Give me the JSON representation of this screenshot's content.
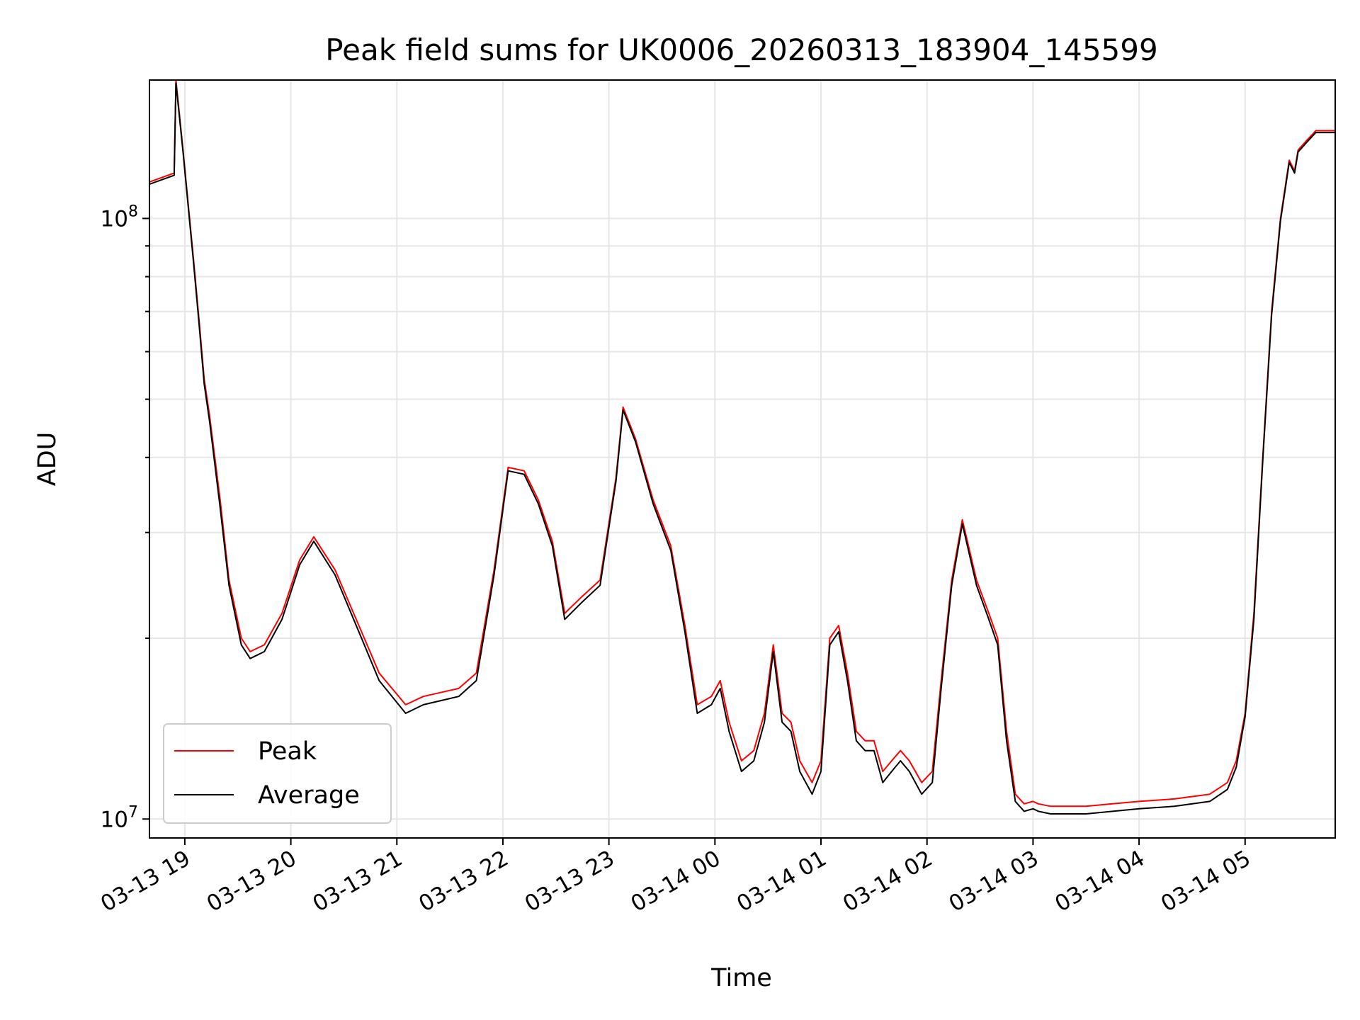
{
  "chart_data": {
    "type": "line",
    "title": "Peak field sums for UK0006_20260313_183904_145599",
    "xlabel": "Time",
    "ylabel": "ADU",
    "yscale": "log",
    "ylim": [
      9300000,
      170000000
    ],
    "xlim": [
      "2026-03-13 18:40",
      "2026-03-14 05:51"
    ],
    "grid": true,
    "legend_position": "lower-left",
    "x_ticks": [
      "03-13 19",
      "03-13 20",
      "03-13 21",
      "03-13 22",
      "03-13 23",
      "03-14 00",
      "03-14 01",
      "03-14 02",
      "03-14 03",
      "03-14 04",
      "03-14 05"
    ],
    "y_ticks": [
      {
        "base": "10",
        "exp": "7"
      },
      {
        "base": "10",
        "exp": "8"
      }
    ],
    "colors": {
      "peak": "#ff0000",
      "average": "#000000",
      "grid": "#e6e6e6"
    },
    "series": [
      {
        "name": "Peak",
        "x": [
          "2026-03-13 18:40",
          "2026-03-13 18:54",
          "2026-03-13 18:55",
          "2026-03-13 18:59",
          "2026-03-13 19:05",
          "2026-03-13 19:08",
          "2026-03-13 19:11",
          "2026-03-13 19:14",
          "2026-03-13 19:20",
          "2026-03-13 19:25",
          "2026-03-13 19:32",
          "2026-03-13 19:37",
          "2026-03-13 19:45",
          "2026-03-13 19:55",
          "2026-03-13 20:05",
          "2026-03-13 20:13",
          "2026-03-13 20:25",
          "2026-03-13 20:40",
          "2026-03-13 20:50",
          "2026-03-13 21:05",
          "2026-03-13 21:15",
          "2026-03-13 21:35",
          "2026-03-13 21:45",
          "2026-03-13 21:55",
          "2026-03-13 22:03",
          "2026-03-13 22:12",
          "2026-03-13 22:20",
          "2026-03-13 22:28",
          "2026-03-13 22:35",
          "2026-03-13 22:45",
          "2026-03-13 22:55",
          "2026-03-13 23:04",
          "2026-03-13 23:08",
          "2026-03-13 23:15",
          "2026-03-13 23:25",
          "2026-03-13 23:35",
          "2026-03-13 23:43",
          "2026-03-13 23:50",
          "2026-03-13 23:58",
          "2026-03-14 00:03",
          "2026-03-14 00:08",
          "2026-03-14 00:15",
          "2026-03-14 00:22",
          "2026-03-14 00:28",
          "2026-03-14 00:33",
          "2026-03-14 00:38",
          "2026-03-14 00:43",
          "2026-03-14 00:48",
          "2026-03-14 00:55",
          "2026-03-14 01:00",
          "2026-03-14 01:05",
          "2026-03-14 01:10",
          "2026-03-14 01:15",
          "2026-03-14 01:20",
          "2026-03-14 01:25",
          "2026-03-14 01:30",
          "2026-03-14 01:35",
          "2026-03-14 01:40",
          "2026-03-14 01:45",
          "2026-03-14 01:50",
          "2026-03-14 01:57",
          "2026-03-14 02:03",
          "2026-03-14 02:08",
          "2026-03-14 02:14",
          "2026-03-14 02:20",
          "2026-03-14 02:28",
          "2026-03-14 02:35",
          "2026-03-14 02:40",
          "2026-03-14 02:45",
          "2026-03-14 02:50",
          "2026-03-14 02:55",
          "2026-03-14 03:00",
          "2026-03-14 03:03",
          "2026-03-14 03:10",
          "2026-03-14 03:20",
          "2026-03-14 03:30",
          "2026-03-14 03:45",
          "2026-03-14 04:00",
          "2026-03-14 04:20",
          "2026-03-14 04:40",
          "2026-03-14 04:50",
          "2026-03-14 04:55",
          "2026-03-14 05:00",
          "2026-03-14 05:05",
          "2026-03-14 05:10",
          "2026-03-14 05:15",
          "2026-03-14 05:20",
          "2026-03-14 05:25",
          "2026-03-14 05:28",
          "2026-03-14 05:30",
          "2026-03-14 05:35",
          "2026-03-14 05:40",
          "2026-03-14 05:51"
        ],
        "y": [
          115000000,
          119000000,
          170000000,
          130000000,
          85000000,
          68000000,
          54000000,
          47000000,
          34000000,
          25000000,
          20000000,
          19000000,
          19500000,
          22000000,
          27000000,
          29500000,
          26000000,
          20500000,
          17500000,
          15500000,
          16000000,
          16500000,
          17500000,
          26000000,
          38500000,
          38000000,
          34000000,
          29000000,
          22000000,
          23500000,
          25000000,
          37000000,
          48500000,
          43000000,
          34000000,
          28500000,
          21000000,
          15500000,
          16000000,
          17000000,
          14500000,
          12500000,
          13000000,
          15000000,
          19500000,
          15000000,
          14500000,
          12500000,
          11500000,
          12500000,
          20000000,
          21000000,
          17500000,
          14000000,
          13500000,
          13500000,
          12000000,
          12500000,
          13000000,
          12500000,
          11500000,
          12000000,
          17000000,
          25000000,
          31500000,
          25000000,
          22000000,
          20000000,
          14000000,
          11000000,
          10600000,
          10700000,
          10600000,
          10500000,
          10500000,
          10500000,
          10600000,
          10700000,
          10800000,
          11000000,
          11500000,
          12500000,
          15000000,
          22000000,
          40000000,
          70000000,
          100000000,
          125000000,
          120000000,
          130000000,
          135000000,
          140000000,
          140000000
        ]
      },
      {
        "name": "Average",
        "x": [
          "2026-03-13 18:40",
          "2026-03-13 18:54",
          "2026-03-13 18:55",
          "2026-03-13 18:59",
          "2026-03-13 19:05",
          "2026-03-13 19:08",
          "2026-03-13 19:11",
          "2026-03-13 19:14",
          "2026-03-13 19:20",
          "2026-03-13 19:25",
          "2026-03-13 19:32",
          "2026-03-13 19:37",
          "2026-03-13 19:45",
          "2026-03-13 19:55",
          "2026-03-13 20:05",
          "2026-03-13 20:13",
          "2026-03-13 20:25",
          "2026-03-13 20:40",
          "2026-03-13 20:50",
          "2026-03-13 21:05",
          "2026-03-13 21:15",
          "2026-03-13 21:35",
          "2026-03-13 21:45",
          "2026-03-13 21:55",
          "2026-03-13 22:03",
          "2026-03-13 22:12",
          "2026-03-13 22:20",
          "2026-03-13 22:28",
          "2026-03-13 22:35",
          "2026-03-13 22:45",
          "2026-03-13 22:55",
          "2026-03-13 23:04",
          "2026-03-13 23:08",
          "2026-03-13 23:15",
          "2026-03-13 23:25",
          "2026-03-13 23:35",
          "2026-03-13 23:43",
          "2026-03-13 23:50",
          "2026-03-13 23:58",
          "2026-03-14 00:03",
          "2026-03-14 00:08",
          "2026-03-14 00:15",
          "2026-03-14 00:22",
          "2026-03-14 00:28",
          "2026-03-14 00:33",
          "2026-03-14 00:38",
          "2026-03-14 00:43",
          "2026-03-14 00:48",
          "2026-03-14 00:55",
          "2026-03-14 01:00",
          "2026-03-14 01:05",
          "2026-03-14 01:10",
          "2026-03-14 01:15",
          "2026-03-14 01:20",
          "2026-03-14 01:25",
          "2026-03-14 01:30",
          "2026-03-14 01:35",
          "2026-03-14 01:40",
          "2026-03-14 01:45",
          "2026-03-14 01:50",
          "2026-03-14 01:57",
          "2026-03-14 02:03",
          "2026-03-14 02:08",
          "2026-03-14 02:14",
          "2026-03-14 02:20",
          "2026-03-14 02:28",
          "2026-03-14 02:35",
          "2026-03-14 02:40",
          "2026-03-14 02:45",
          "2026-03-14 02:50",
          "2026-03-14 02:55",
          "2026-03-14 03:00",
          "2026-03-14 03:03",
          "2026-03-14 03:10",
          "2026-03-14 03:20",
          "2026-03-14 03:30",
          "2026-03-14 03:45",
          "2026-03-14 04:00",
          "2026-03-14 04:20",
          "2026-03-14 04:40",
          "2026-03-14 04:50",
          "2026-03-14 04:55",
          "2026-03-14 05:00",
          "2026-03-14 05:05",
          "2026-03-14 05:10",
          "2026-03-14 05:15",
          "2026-03-14 05:20",
          "2026-03-14 05:25",
          "2026-03-14 05:28",
          "2026-03-14 05:30",
          "2026-03-14 05:35",
          "2026-03-14 05:40",
          "2026-03-14 05:51"
        ],
        "y": [
          114000000,
          118000000,
          168000000,
          129000000,
          84000000,
          67000000,
          53000000,
          46000000,
          33000000,
          24500000,
          19500000,
          18500000,
          19000000,
          21500000,
          26500000,
          29000000,
          25500000,
          20000000,
          17000000,
          15000000,
          15500000,
          16000000,
          17000000,
          25500000,
          38000000,
          37500000,
          33500000,
          28500000,
          21500000,
          23000000,
          24500000,
          36500000,
          48000000,
          42500000,
          33500000,
          28000000,
          20500000,
          15000000,
          15500000,
          16500000,
          14000000,
          12000000,
          12500000,
          14500000,
          19000000,
          14500000,
          14000000,
          12000000,
          11000000,
          12000000,
          19500000,
          20500000,
          17000000,
          13500000,
          13000000,
          13000000,
          11500000,
          12000000,
          12500000,
          12000000,
          11000000,
          11500000,
          16500000,
          24500000,
          31000000,
          24500000,
          21500000,
          19500000,
          13500000,
          10700000,
          10300000,
          10400000,
          10300000,
          10200000,
          10200000,
          10200000,
          10300000,
          10400000,
          10500000,
          10700000,
          11200000,
          12200000,
          14800000,
          21500000,
          39500000,
          69000000,
          99000000,
          124000000,
          119000000,
          129000000,
          134000000,
          139000000,
          139000000
        ]
      }
    ]
  }
}
